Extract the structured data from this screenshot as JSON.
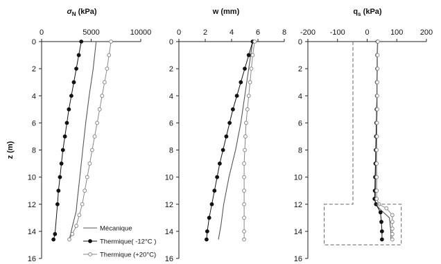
{
  "chart_data": [
    {
      "type": "line",
      "title_main": "σ",
      "title_sub": "N",
      "title_unit": " (kPa)",
      "xlabel": "",
      "ylabel": "z (m)",
      "xlim": [
        0,
        10000
      ],
      "ylim": [
        0,
        16
      ],
      "y_reversed": true,
      "xticks": [
        "0",
        "5000",
        "10000"
      ],
      "yticks": [
        "0",
        "2",
        "4",
        "6",
        "8",
        "10",
        "12",
        "14",
        "16"
      ],
      "grid": false,
      "series": [
        {
          "name": "Mécanique",
          "marker": "none",
          "color": "#555555",
          "points": [
            [
              5500,
              0
            ],
            [
              5200,
              2
            ],
            [
              4800,
              4
            ],
            [
              4450,
              6
            ],
            [
              4150,
              8
            ],
            [
              3850,
              10
            ],
            [
              3550,
              12
            ],
            [
              3500,
              12.5
            ],
            [
              3150,
              13.5
            ],
            [
              2800,
              14.6
            ]
          ]
        },
        {
          "name": "Thermique( -12°C )",
          "marker": "filled-circle",
          "color": "#111111",
          "points": [
            [
              4000,
              0
            ],
            [
              3750,
              1
            ],
            [
              3500,
              2
            ],
            [
              3250,
              3
            ],
            [
              3000,
              4
            ],
            [
              2750,
              5
            ],
            [
              2550,
              6
            ],
            [
              2350,
              7
            ],
            [
              2150,
              8
            ],
            [
              2000,
              9
            ],
            [
              1850,
              10
            ],
            [
              1700,
              11
            ],
            [
              1600,
              12
            ],
            [
              1350,
              14.2
            ],
            [
              1200,
              14.6
            ]
          ]
        },
        {
          "name": "Thermique (+20°C)",
          "marker": "open-circle",
          "color": "#888888",
          "points": [
            [
              7000,
              0
            ],
            [
              6800,
              1
            ],
            [
              6600,
              2
            ],
            [
              6350,
              3
            ],
            [
              6100,
              4
            ],
            [
              5850,
              5
            ],
            [
              5600,
              6
            ],
            [
              5350,
              7
            ],
            [
              5100,
              8
            ],
            [
              4850,
              9
            ],
            [
              4600,
              10
            ],
            [
              4350,
              11
            ],
            [
              4100,
              12
            ],
            [
              3800,
              12.8
            ],
            [
              3500,
              13.6
            ],
            [
              3100,
              14.2
            ],
            [
              2800,
              14.6
            ]
          ]
        }
      ],
      "legend": {
        "placement": "bottom-right",
        "items": [
          "Mécanique",
          "Thermique( -12°C )",
          "Thermique (+20°C)"
        ]
      }
    },
    {
      "type": "line",
      "title": "w (mm)",
      "xlabel": "",
      "ylabel": "",
      "xlim": [
        0,
        8
      ],
      "ylim": [
        0,
        16
      ],
      "y_reversed": true,
      "xticks": [
        "0",
        "2",
        "4",
        "6",
        "8"
      ],
      "yticks": [
        "0",
        "2",
        "4",
        "6",
        "8",
        "10",
        "12",
        "14",
        "16"
      ],
      "grid": false,
      "series": [
        {
          "name": "Mécanique",
          "marker": "none",
          "color": "#555555",
          "points": [
            [
              5.6,
              0
            ],
            [
              5.3,
              2
            ],
            [
              5.0,
              4
            ],
            [
              4.7,
              6
            ],
            [
              4.3,
              8
            ],
            [
              3.8,
              10
            ],
            [
              3.4,
              12
            ],
            [
              3.2,
              13.5
            ],
            [
              3.0,
              14.6
            ]
          ]
        },
        {
          "name": "Thermique( -12°C )",
          "marker": "filled-circle",
          "color": "#111111",
          "points": [
            [
              5.6,
              0
            ],
            [
              5.3,
              1
            ],
            [
              5.0,
              2
            ],
            [
              4.7,
              3
            ],
            [
              4.4,
              4
            ],
            [
              4.1,
              5
            ],
            [
              3.85,
              6
            ],
            [
              3.6,
              7
            ],
            [
              3.35,
              8
            ],
            [
              3.1,
              9
            ],
            [
              2.9,
              10
            ],
            [
              2.7,
              11
            ],
            [
              2.5,
              12
            ],
            [
              2.3,
              13
            ],
            [
              2.15,
              14
            ],
            [
              2.1,
              14.6
            ]
          ]
        },
        {
          "name": "Thermique (+20°C)",
          "marker": "open-circle",
          "color": "#888888",
          "points": [
            [
              5.75,
              0
            ],
            [
              5.6,
              1
            ],
            [
              5.5,
              2
            ],
            [
              5.4,
              3
            ],
            [
              5.3,
              4
            ],
            [
              5.2,
              5
            ],
            [
              5.1,
              6
            ],
            [
              5.05,
              7
            ],
            [
              5.0,
              8
            ],
            [
              4.95,
              9
            ],
            [
              4.95,
              10
            ],
            [
              4.95,
              11
            ],
            [
              4.95,
              12
            ],
            [
              4.95,
              13
            ],
            [
              4.95,
              14
            ],
            [
              4.95,
              14.6
            ]
          ]
        }
      ]
    },
    {
      "type": "line",
      "title_main": "q",
      "title_sub": "s",
      "title_unit": " (kPa)",
      "xlabel": "",
      "ylabel": "",
      "xlim": [
        -200,
        200
      ],
      "ylim": [
        0,
        16
      ],
      "y_reversed": true,
      "xticks": [
        "-200",
        "-100",
        "0",
        "100",
        "200"
      ],
      "yticks": [
        "0",
        "2",
        "4",
        "6",
        "8",
        "10",
        "12",
        "14",
        "16"
      ],
      "grid": false,
      "series": [
        {
          "name": "Mécanique",
          "marker": "none",
          "color": "#555555",
          "points": [
            [
              35,
              0
            ],
            [
              33,
              4
            ],
            [
              30,
              8
            ],
            [
              28,
              11
            ],
            [
              27,
              12
            ],
            [
              50,
              12.5
            ],
            [
              75,
              13
            ],
            [
              80,
              14
            ],
            [
              80,
              14.6
            ]
          ]
        },
        {
          "name": "Thermique( -12°C )",
          "marker": "filled-circle",
          "color": "#111111",
          "points": [
            [
              35,
              0
            ],
            [
              34,
              1
            ],
            [
              34,
              2
            ],
            [
              33,
              3
            ],
            [
              33,
              4
            ],
            [
              32,
              5
            ],
            [
              31,
              6
            ],
            [
              30,
              7
            ],
            [
              29,
              8
            ],
            [
              28,
              9
            ],
            [
              27,
              10
            ],
            [
              26,
              11
            ],
            [
              25,
              11.6
            ],
            [
              30,
              12
            ],
            [
              45,
              12.6
            ],
            [
              48,
              13.3
            ],
            [
              50,
              14
            ],
            [
              50,
              14.6
            ]
          ]
        },
        {
          "name": "Thermique (+20°C)",
          "marker": "open-circle",
          "color": "#888888",
          "points": [
            [
              36,
              0
            ],
            [
              35,
              1
            ],
            [
              35,
              2
            ],
            [
              34,
              3
            ],
            [
              34,
              4
            ],
            [
              34,
              5
            ],
            [
              33,
              6
            ],
            [
              33,
              7
            ],
            [
              32,
              8
            ],
            [
              32,
              9
            ],
            [
              32,
              10
            ],
            [
              32,
              11
            ],
            [
              32,
              11.6
            ],
            [
              40,
              12
            ],
            [
              65,
              12.3
            ],
            [
              85,
              12.8
            ],
            [
              85,
              13.3
            ],
            [
              85,
              13.8
            ],
            [
              85,
              14.2
            ],
            [
              85,
              14.6
            ]
          ]
        },
        {
          "name": "",
          "marker": "none",
          "dashed": true,
          "color": "#666666",
          "points": [
            [
              -48,
              0
            ],
            [
              -48,
              12
            ],
            [
              -145,
              12
            ],
            [
              -145,
              15
            ],
            [
              115,
              15
            ],
            [
              115,
              12
            ],
            [
              30,
              12
            ]
          ]
        }
      ]
    }
  ]
}
